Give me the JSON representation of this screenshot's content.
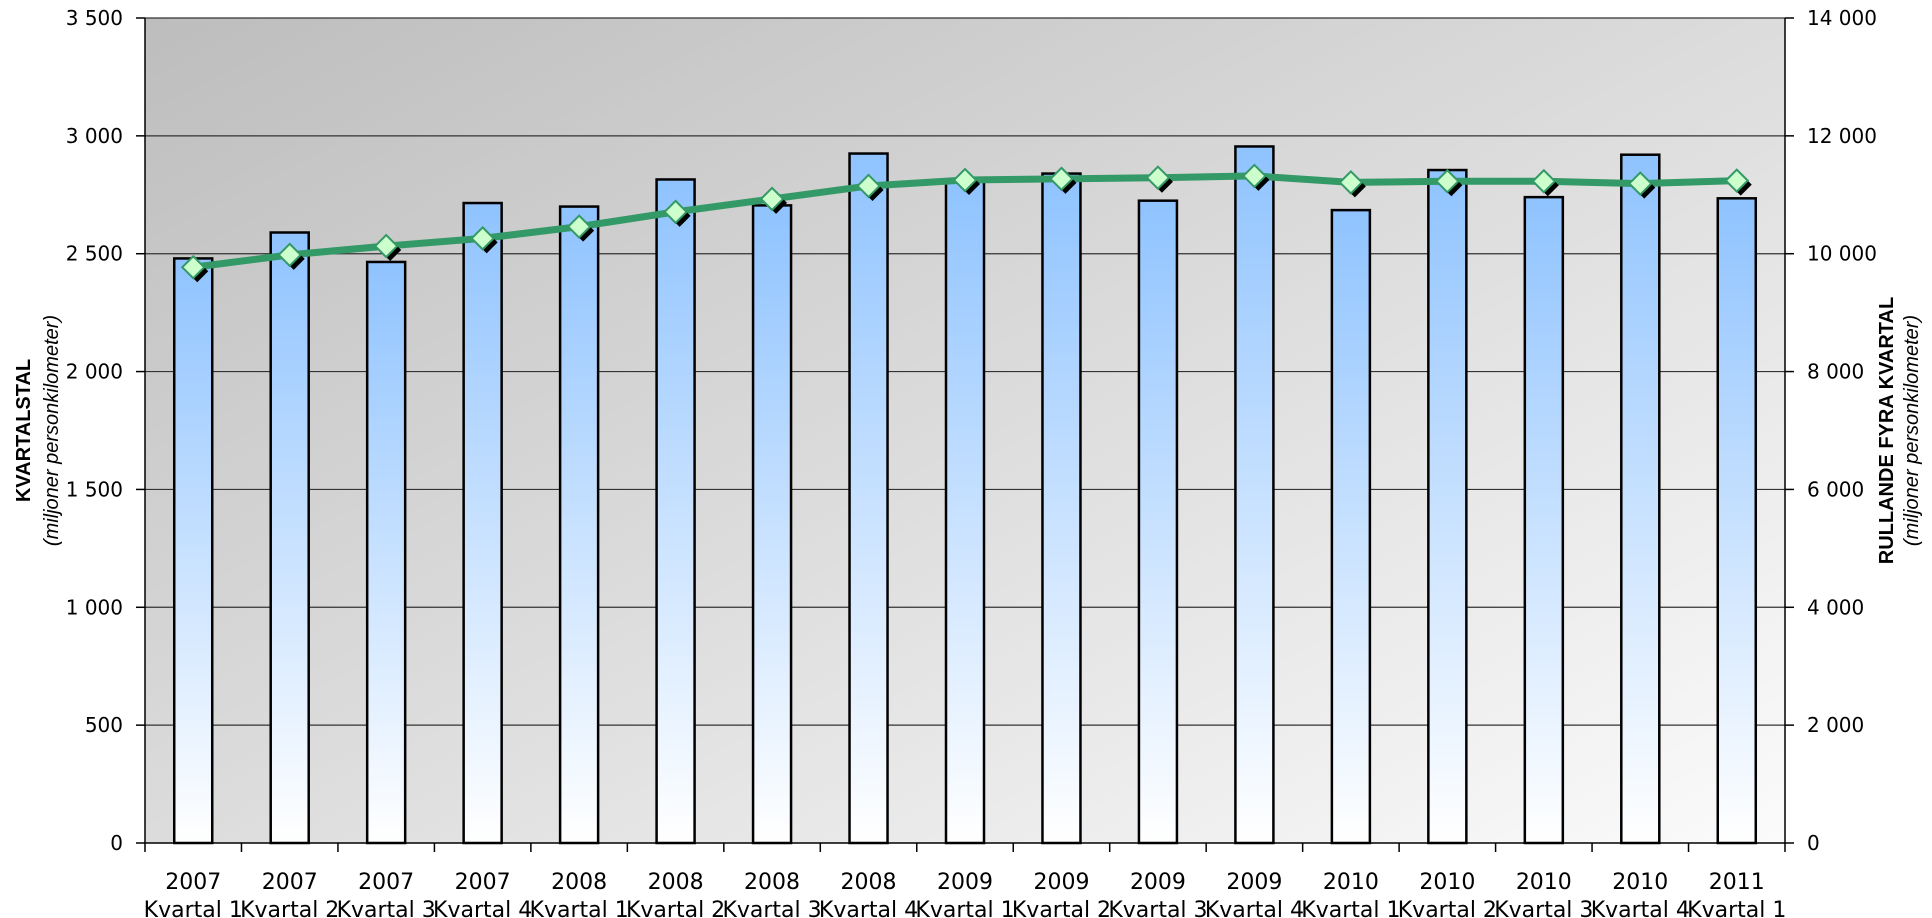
{
  "chart_data": {
    "type": "bar",
    "categories": [
      "2007 Kvartal 1",
      "2007 Kvartal 2",
      "2007 Kvartal 3",
      "2007 Kvartal 4",
      "2008 Kvartal 1",
      "2008 Kvartal 2",
      "2008 Kvartal 3",
      "2008 Kvartal 4",
      "2009 Kvartal 1",
      "2009 Kvartal 2",
      "2009 Kvartal 3",
      "2009 Kvartal 4",
      "2010 Kvartal 1",
      "2010 Kvartal 2",
      "2010 Kvartal 3",
      "2010 Kvartal 4",
      "2011 Kvartal 1"
    ],
    "category_lines": [
      [
        "2007",
        "Kvartal 1"
      ],
      [
        "2007",
        "Kvartal 2"
      ],
      [
        "2007",
        "Kvartal 3"
      ],
      [
        "2007",
        "Kvartal 4"
      ],
      [
        "2008",
        "Kvartal 1"
      ],
      [
        "2008",
        "Kvartal 2"
      ],
      [
        "2008",
        "Kvartal 3"
      ],
      [
        "2008",
        "Kvartal 4"
      ],
      [
        "2009",
        "Kvartal 1"
      ],
      [
        "2009",
        "Kvartal 2"
      ],
      [
        "2009",
        "Kvartal 3"
      ],
      [
        "2009",
        "Kvartal 4"
      ],
      [
        "2010",
        "Kvartal 1"
      ],
      [
        "2010",
        "Kvartal 2"
      ],
      [
        "2010",
        "Kvartal 3"
      ],
      [
        "2010",
        "Kvartal 4"
      ],
      [
        "2011",
        "Kvartal 1"
      ]
    ],
    "series": [
      {
        "type": "bar",
        "axis": "left",
        "values": [
          2480,
          2590,
          2465,
          2715,
          2700,
          2815,
          2705,
          2925,
          2810,
          2840,
          2725,
          2955,
          2685,
          2855,
          2740,
          2920,
          2735
        ]
      },
      {
        "type": "line",
        "axis": "right",
        "values": [
          9770,
          9980,
          10130,
          10260,
          10460,
          10710,
          10930,
          11150,
          11250,
          11270,
          11290,
          11320,
          11210,
          11230,
          11230,
          11190,
          11240
        ]
      }
    ],
    "y_left": {
      "title": "KVARTALSTAL",
      "subtitle": "(miljoner personkilometer)",
      "ylim": [
        0,
        3500
      ],
      "ticks": [
        0,
        500,
        1000,
        1500,
        2000,
        2500,
        3000,
        3500
      ],
      "tick_labels": [
        "0",
        "500",
        "1 000",
        "1 500",
        "2 000",
        "2 500",
        "3 000",
        "3 500"
      ]
    },
    "y_right": {
      "title": "RULLANDE FYRA KVARTAL",
      "subtitle": "(miljoner personkilometer)",
      "ylim": [
        0,
        14000
      ],
      "ticks": [
        0,
        2000,
        4000,
        6000,
        8000,
        10000,
        12000,
        14000
      ],
      "tick_labels": [
        "0",
        "2 000",
        "4 000",
        "6 000",
        "8 000",
        "10 000",
        "12 000",
        "14 000"
      ]
    },
    "grid": true,
    "legend": "none",
    "colors": {
      "bar_top": "#8fc3ff",
      "bar_bottom": "#ffffff",
      "bar_outline": "#000000",
      "line": "#339966",
      "marker": "#ccffcc",
      "plot_bg_light": "#fbfbfb",
      "plot_bg_dark": "#bdbdbd",
      "gridline": "#333333"
    }
  }
}
